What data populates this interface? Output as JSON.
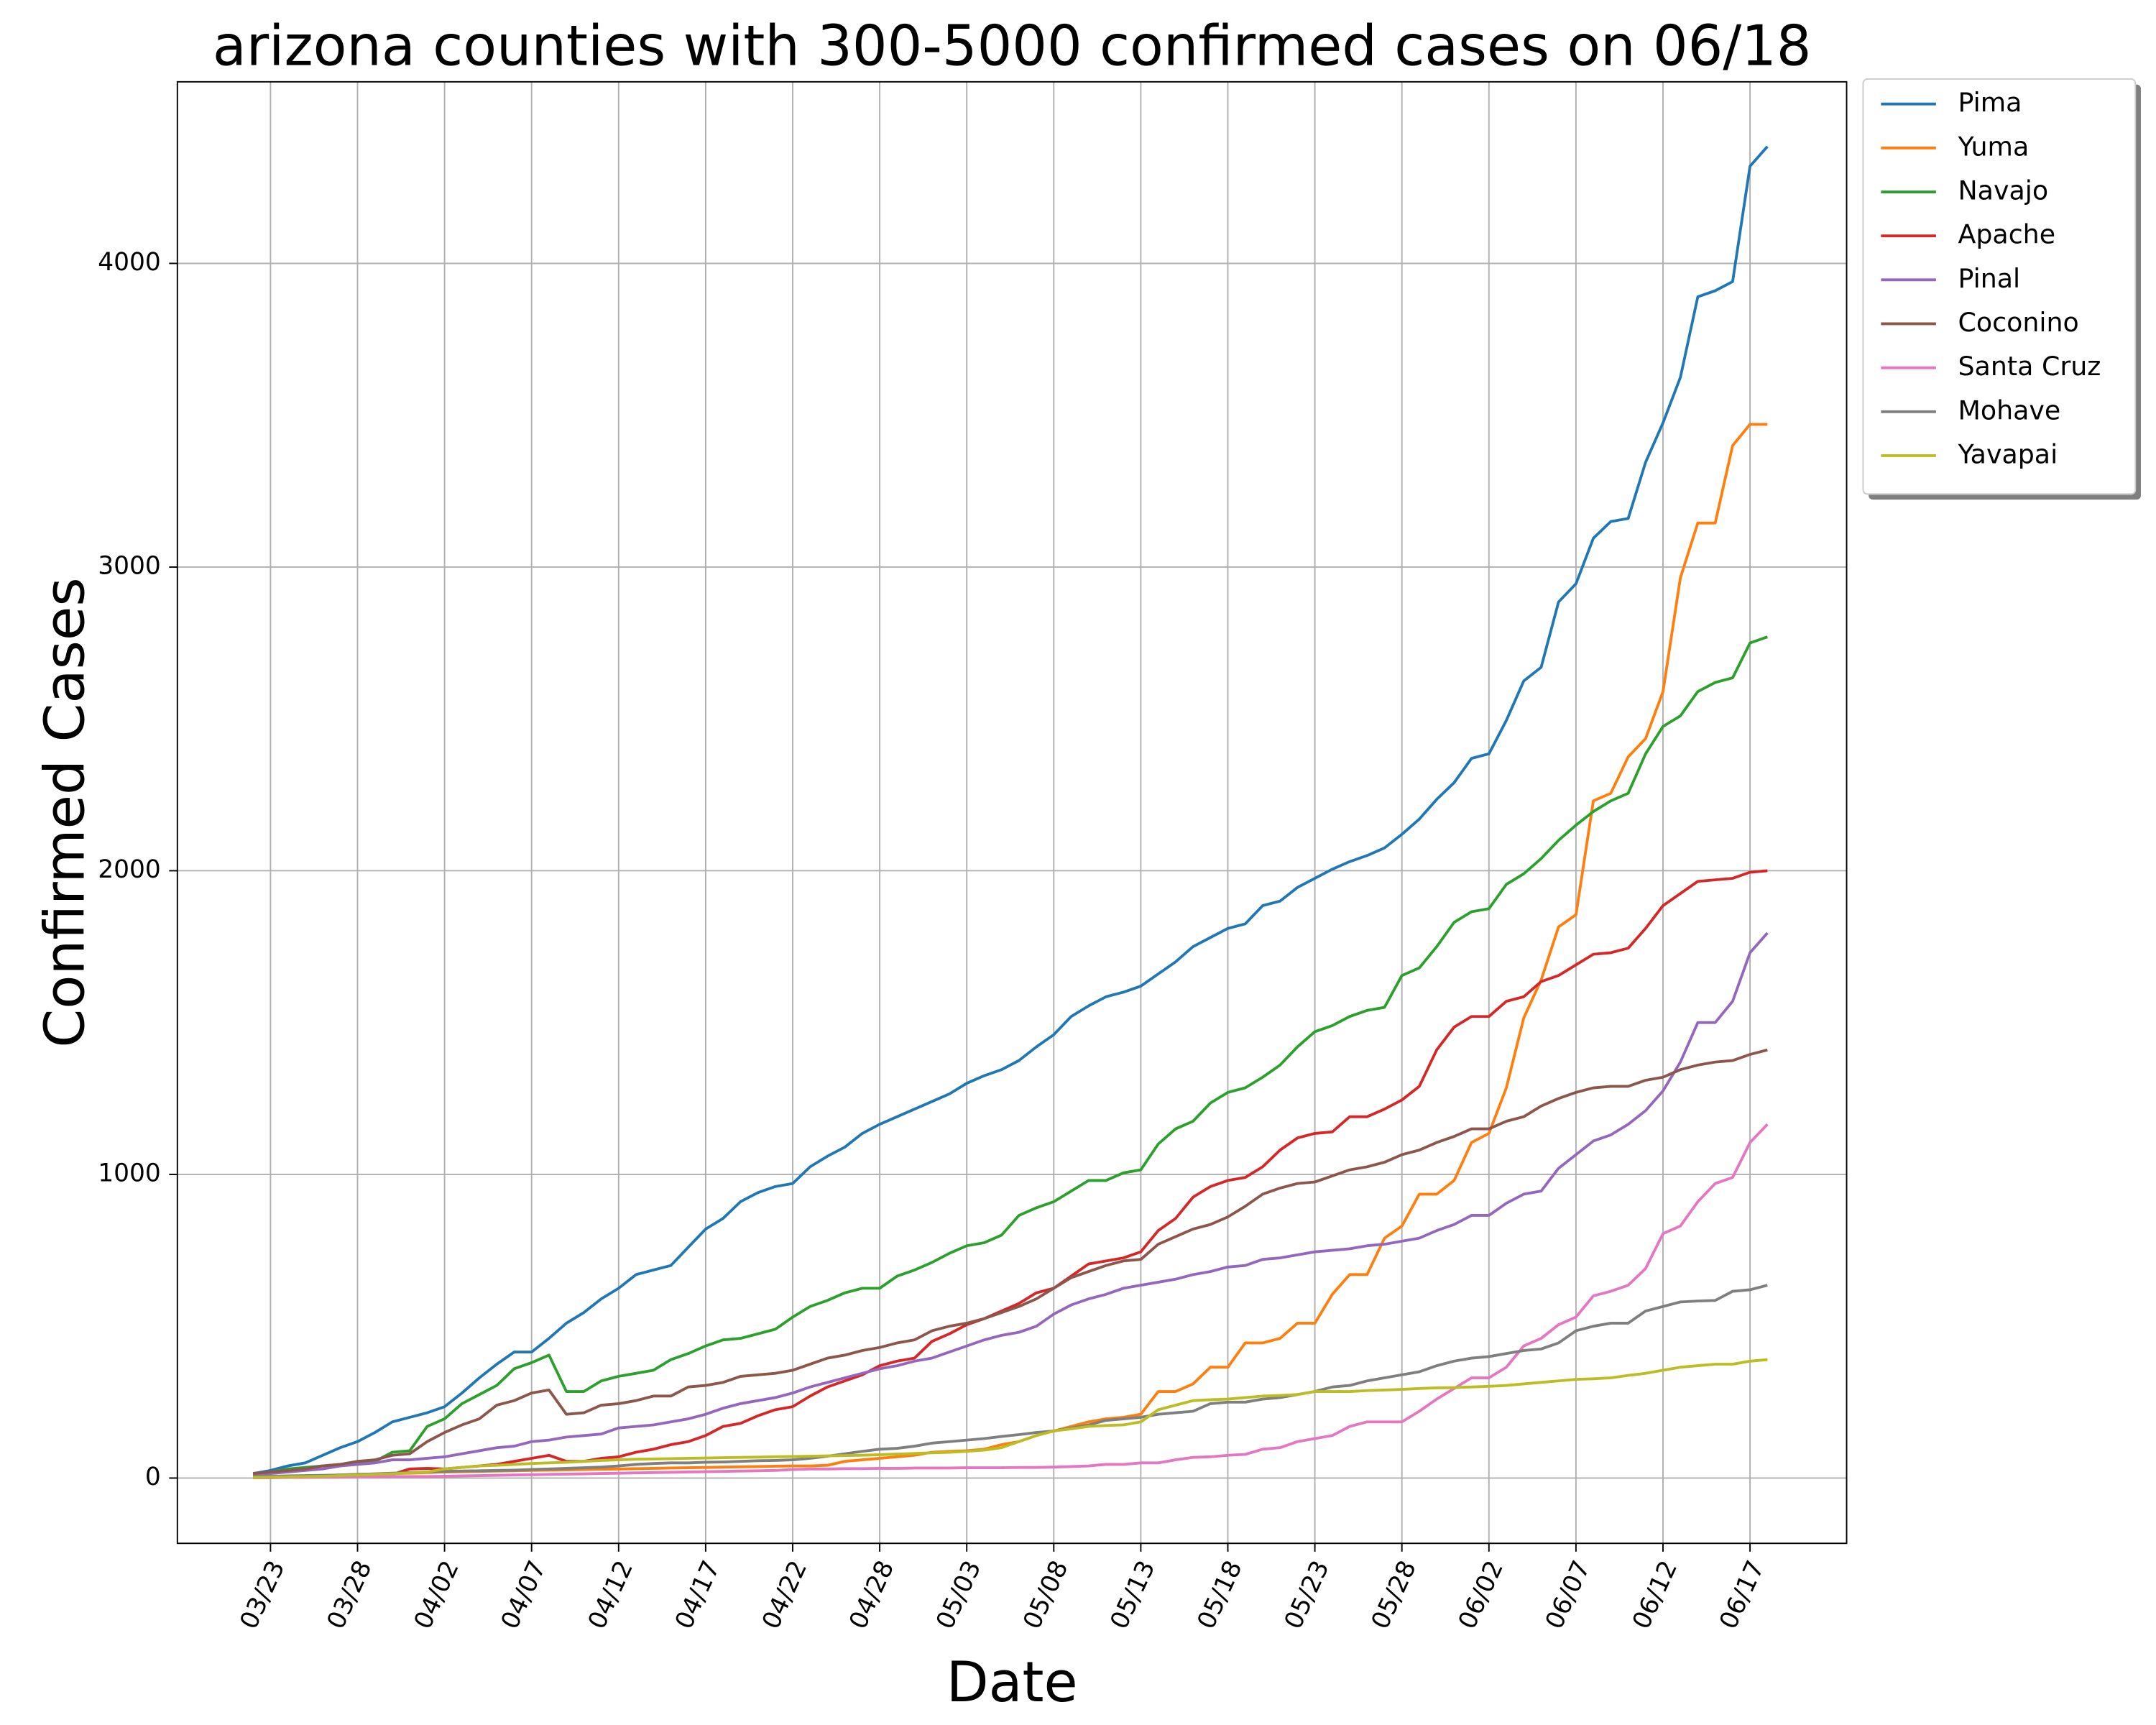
{
  "chart_data": {
    "type": "line",
    "title": "arizona counties with 300-5000 confirmed cases on 06/18",
    "xlabel": "Date",
    "ylabel": "Confirmed Cases",
    "categories": [
      null,
      "03/23",
      null,
      null,
      null,
      null,
      "03/28",
      null,
      null,
      null,
      null,
      "04/02",
      null,
      null,
      null,
      null,
      "04/07",
      null,
      null,
      null,
      null,
      "04/12",
      null,
      null,
      null,
      null,
      "04/17",
      null,
      null,
      null,
      null,
      "04/22",
      null,
      null,
      null,
      null,
      "04/28",
      null,
      null,
      null,
      null,
      "05/03",
      null,
      null,
      null,
      null,
      "05/08",
      null,
      null,
      null,
      null,
      "05/13",
      null,
      null,
      null,
      null,
      "05/18",
      null,
      null,
      null,
      null,
      "05/23",
      null,
      null,
      null,
      null,
      "05/28",
      null,
      null,
      null,
      null,
      "06/02",
      null,
      null,
      null,
      null,
      "06/07",
      null,
      null,
      null,
      null,
      "06/12",
      null,
      null,
      null,
      null,
      "06/17",
      null
    ],
    "xlim": [
      -4.35,
      91.55
    ],
    "ylim": [
      -215,
      4598
    ],
    "yticks": [
      0,
      1000,
      2000,
      3000,
      4000
    ],
    "grid": true,
    "legend": "outside upper right",
    "series": [
      {
        "name": "Pima",
        "color": "#1f77b4",
        "values": [
          15,
          25,
          40,
          50,
          75,
          100,
          120,
          150,
          185,
          200,
          215,
          235,
          280,
          330,
          375,
          415,
          415,
          460,
          510,
          545,
          590,
          625,
          670,
          685,
          700,
          760,
          820,
          855,
          910,
          940,
          960,
          970,
          1025,
          1060,
          1090,
          1135,
          1165,
          1190,
          1215,
          1240,
          1265,
          1300,
          1325,
          1345,
          1375,
          1420,
          1460,
          1520,
          1555,
          1585,
          1600,
          1620,
          1660,
          1700,
          1750,
          1780,
          1810,
          1825,
          1885,
          1900,
          1945,
          1975,
          2005,
          2030,
          2050,
          2075,
          2120,
          2170,
          2235,
          2290,
          2370,
          2385,
          2495,
          2625,
          2670,
          2885,
          2945,
          3095,
          3150,
          3160,
          3345,
          3475,
          3625,
          3890,
          3910,
          3940,
          4320,
          4385
        ]
      },
      {
        "name": "Yuma",
        "color": "#ff7f0e",
        "values": [
          3,
          4,
          5,
          6,
          8,
          10,
          12,
          13,
          15,
          16,
          18,
          20,
          21,
          22,
          23,
          24,
          25,
          26,
          27,
          28,
          29,
          30,
          31,
          32,
          33,
          34,
          35,
          36,
          37,
          38,
          39,
          40,
          40,
          42,
          55,
          60,
          65,
          70,
          75,
          85,
          88,
          90,
          95,
          110,
          120,
          140,
          155,
          170,
          185,
          195,
          200,
          210,
          285,
          285,
          310,
          365,
          365,
          445,
          445,
          460,
          510,
          510,
          605,
          670,
          670,
          790,
          830,
          935,
          935,
          980,
          1105,
          1135,
          1285,
          1515,
          1640,
          1815,
          1855,
          2230,
          2255,
          2375,
          2435,
          2590,
          2965,
          3145,
          3145,
          3400,
          3470,
          3470
        ]
      },
      {
        "name": "Navajo",
        "color": "#2ca02c",
        "values": [
          10,
          20,
          30,
          35,
          40,
          45,
          50,
          55,
          85,
          90,
          170,
          195,
          245,
          275,
          305,
          360,
          380,
          405,
          285,
          285,
          320,
          335,
          345,
          355,
          390,
          410,
          435,
          455,
          460,
          475,
          490,
          530,
          565,
          585,
          610,
          625,
          625,
          665,
          685,
          710,
          740,
          765,
          775,
          800,
          865,
          890,
          910,
          945,
          980,
          980,
          1005,
          1015,
          1100,
          1150,
          1175,
          1235,
          1270,
          1285,
          1320,
          1360,
          1420,
          1470,
          1490,
          1520,
          1540,
          1550,
          1655,
          1680,
          1750,
          1830,
          1865,
          1875,
          1955,
          1990,
          2040,
          2100,
          2150,
          2195,
          2230,
          2255,
          2385,
          2475,
          2510,
          2590,
          2620,
          2635,
          2750,
          2770
        ]
      },
      {
        "name": "Apache",
        "color": "#d62728",
        "values": [
          2,
          3,
          4,
          5,
          6,
          7,
          8,
          10,
          12,
          30,
          32,
          30,
          35,
          40,
          45,
          55,
          65,
          75,
          55,
          55,
          65,
          70,
          85,
          95,
          110,
          120,
          140,
          170,
          180,
          205,
          225,
          235,
          270,
          300,
          320,
          340,
          370,
          385,
          395,
          450,
          475,
          505,
          525,
          550,
          575,
          610,
          625,
          665,
          705,
          715,
          725,
          745,
          815,
          855,
          925,
          960,
          980,
          990,
          1025,
          1080,
          1120,
          1135,
          1140,
          1190,
          1190,
          1215,
          1245,
          1290,
          1410,
          1485,
          1520,
          1520,
          1570,
          1585,
          1635,
          1655,
          1690,
          1725,
          1730,
          1745,
          1810,
          1885,
          1925,
          1965,
          1970,
          1975,
          1995,
          2000
        ]
      },
      {
        "name": "Pinal",
        "color": "#9467bd",
        "values": [
          10,
          15,
          20,
          25,
          30,
          40,
          45,
          50,
          60,
          60,
          65,
          70,
          80,
          90,
          100,
          105,
          120,
          125,
          135,
          140,
          145,
          165,
          170,
          175,
          185,
          195,
          210,
          230,
          245,
          255,
          265,
          280,
          300,
          315,
          330,
          345,
          360,
          370,
          385,
          395,
          415,
          435,
          455,
          470,
          480,
          500,
          540,
          570,
          590,
          605,
          625,
          635,
          645,
          655,
          670,
          680,
          695,
          700,
          720,
          725,
          735,
          745,
          750,
          755,
          765,
          770,
          780,
          790,
          815,
          835,
          865,
          865,
          905,
          935,
          945,
          1020,
          1065,
          1110,
          1130,
          1165,
          1210,
          1275,
          1370,
          1500,
          1500,
          1570,
          1730,
          1795
        ]
      },
      {
        "name": "Coconino",
        "color": "#8c564b",
        "values": [
          15,
          20,
          25,
          30,
          40,
          45,
          55,
          60,
          75,
          80,
          120,
          150,
          175,
          195,
          240,
          255,
          280,
          290,
          210,
          215,
          240,
          245,
          255,
          270,
          270,
          300,
          305,
          315,
          335,
          340,
          345,
          355,
          375,
          395,
          405,
          420,
          430,
          445,
          455,
          485,
          500,
          510,
          525,
          545,
          565,
          590,
          625,
          660,
          680,
          700,
          715,
          720,
          770,
          795,
          820,
          835,
          860,
          895,
          935,
          955,
          970,
          975,
          995,
          1015,
          1025,
          1040,
          1065,
          1080,
          1105,
          1125,
          1150,
          1150,
          1175,
          1190,
          1225,
          1250,
          1270,
          1285,
          1290,
          1290,
          1310,
          1320,
          1345,
          1360,
          1370,
          1375,
          1395,
          1410
        ]
      },
      {
        "name": "Santa Cruz",
        "color": "#e377c2",
        "values": [
          1,
          1,
          2,
          2,
          3,
          3,
          4,
          4,
          5,
          5,
          5,
          6,
          7,
          8,
          9,
          10,
          11,
          12,
          13,
          14,
          15,
          16,
          17,
          18,
          19,
          20,
          21,
          22,
          23,
          24,
          25,
          28,
          30,
          30,
          31,
          31,
          32,
          32,
          33,
          33,
          33,
          34,
          34,
          34,
          35,
          35,
          36,
          38,
          40,
          45,
          45,
          50,
          50,
          60,
          68,
          70,
          75,
          78,
          95,
          100,
          120,
          130,
          140,
          170,
          185,
          185,
          185,
          220,
          260,
          295,
          330,
          330,
          365,
          435,
          460,
          505,
          530,
          600,
          615,
          635,
          690,
          805,
          830,
          910,
          970,
          990,
          1105,
          1165
        ]
      },
      {
        "name": "Mohave",
        "color": "#7f7f7f",
        "values": [
          5,
          6,
          7,
          8,
          9,
          10,
          12,
          14,
          16,
          18,
          20,
          22,
          23,
          24,
          25,
          26,
          28,
          30,
          32,
          34,
          36,
          40,
          45,
          48,
          50,
          50,
          52,
          53,
          55,
          57,
          58,
          60,
          65,
          72,
          80,
          88,
          95,
          98,
          105,
          115,
          120,
          125,
          130,
          137,
          143,
          150,
          155,
          165,
          175,
          190,
          195,
          200,
          210,
          215,
          220,
          245,
          250,
          250,
          260,
          265,
          275,
          285,
          300,
          305,
          320,
          330,
          340,
          350,
          370,
          385,
          395,
          400,
          410,
          420,
          425,
          445,
          485,
          500,
          510,
          510,
          550,
          565,
          580,
          583,
          585,
          615,
          620,
          635
        ]
      },
      {
        "name": "Yavapai",
        "color": "#bcbd22",
        "values": [
          2,
          3,
          4,
          5,
          6,
          8,
          10,
          12,
          14,
          17,
          20,
          30,
          35,
          40,
          42,
          45,
          48,
          50,
          52,
          55,
          58,
          60,
          62,
          63,
          64,
          65,
          66,
          67,
          68,
          69,
          70,
          71,
          72,
          73,
          74,
          75,
          77,
          79,
          81,
          83,
          85,
          88,
          92,
          100,
          120,
          140,
          155,
          162,
          170,
          173,
          175,
          185,
          225,
          240,
          255,
          258,
          260,
          265,
          270,
          272,
          275,
          285,
          285,
          285,
          288,
          290,
          292,
          295,
          297,
          298,
          300,
          302,
          305,
          310,
          315,
          320,
          325,
          327,
          330,
          338,
          345,
          355,
          365,
          370,
          375,
          375,
          385,
          390
        ]
      }
    ]
  }
}
